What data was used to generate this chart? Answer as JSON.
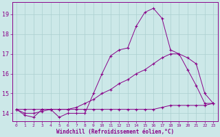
{
  "bg_color": "#cce8e8",
  "grid_color": "#aacfcf",
  "line_color": "#880088",
  "x_ticks": [
    0,
    1,
    2,
    3,
    4,
    5,
    6,
    7,
    8,
    9,
    10,
    11,
    12,
    13,
    14,
    15,
    16,
    17,
    18,
    19,
    20,
    21,
    22,
    23
  ],
  "y_ticks": [
    14,
    15,
    16,
    17,
    18,
    19
  ],
  "xlabel": "Windchill (Refroidissement éolien,°C)",
  "ylim": [
    13.6,
    19.6
  ],
  "xlim": [
    -0.5,
    23.5
  ],
  "line1_x": [
    0,
    1,
    2,
    3,
    4,
    5,
    6,
    7,
    8,
    9,
    10,
    11,
    12,
    13,
    14,
    15,
    16,
    17,
    18,
    19,
    20,
    21,
    22,
    23
  ],
  "line1_y": [
    14.2,
    13.9,
    13.8,
    14.2,
    14.2,
    13.8,
    14.0,
    14.0,
    14.0,
    15.0,
    16.0,
    16.9,
    17.2,
    17.3,
    18.4,
    19.1,
    19.3,
    18.8,
    17.2,
    17.0,
    16.2,
    15.4,
    14.5,
    14.5
  ],
  "line2_x": [
    0,
    1,
    2,
    3,
    4,
    5,
    6,
    7,
    8,
    9,
    10,
    11,
    12,
    13,
    14,
    15,
    16,
    17,
    18,
    19,
    20,
    21,
    22,
    23
  ],
  "line2_y": [
    14.2,
    14.0,
    14.0,
    14.1,
    14.2,
    14.2,
    14.2,
    14.3,
    14.5,
    14.7,
    15.0,
    15.2,
    15.5,
    15.7,
    16.0,
    16.2,
    16.5,
    16.8,
    17.0,
    17.0,
    16.8,
    16.5,
    15.0,
    14.5
  ],
  "line3_x": [
    0,
    1,
    2,
    3,
    4,
    5,
    6,
    7,
    8,
    9,
    10,
    11,
    12,
    13,
    14,
    15,
    16,
    17,
    18,
    19,
    20,
    21,
    22,
    23
  ],
  "line3_y": [
    14.2,
    14.2,
    14.2,
    14.2,
    14.2,
    14.2,
    14.2,
    14.2,
    14.2,
    14.2,
    14.2,
    14.2,
    14.2,
    14.2,
    14.2,
    14.2,
    14.2,
    14.3,
    14.4,
    14.4,
    14.4,
    14.4,
    14.4,
    14.5
  ]
}
